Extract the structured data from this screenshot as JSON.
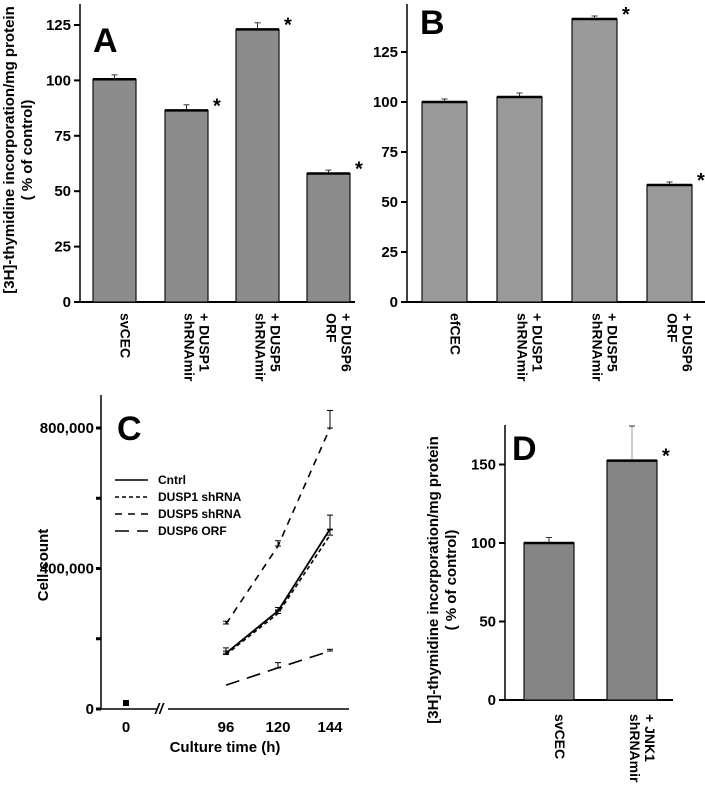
{
  "figure": {
    "shared_ylabel_line1": "[3H]-thymidine incorporation/mg protein",
    "shared_ylabel_line2": "( % of control)"
  },
  "chart_data": [
    {
      "panel": "A",
      "type": "bar",
      "categories": [
        "svCEC",
        "+ DUSP1 shRNAmir",
        "+ DUSP5 shRNAmir",
        "+ DUSP6 ORF"
      ],
      "category_lines": [
        [
          "svCEC"
        ],
        [
          "+ DUSP1",
          "shRNAmir"
        ],
        [
          "+ DUSP5",
          "shRNAmir"
        ],
        [
          "+ DUSP6",
          "ORF"
        ]
      ],
      "values": [
        100.5,
        86.5,
        123,
        58
      ],
      "errors": [
        2,
        2.5,
        3,
        1.5
      ],
      "significant": [
        false,
        true,
        true,
        true
      ],
      "ylabel": "[3H]-thymidine incorporation/mg protein ( % of control)",
      "yticks": [
        0,
        25,
        50,
        75,
        100,
        125
      ],
      "ylim": [
        0,
        133
      ],
      "bar_color": "#8c8c8c"
    },
    {
      "panel": "B",
      "type": "bar",
      "categories": [
        "efCEC",
        "+ DUSP1 shRNAmir",
        "+ DUSP5 shRNAmir",
        "+ DUSP6 ORF"
      ],
      "category_lines": [
        [
          "efCEC"
        ],
        [
          "+ DUSP1",
          "shRNAmir"
        ],
        [
          "+ DUSP5",
          "shRNAmir"
        ],
        [
          "+ DUSP6",
          "ORF"
        ]
      ],
      "values": [
        100,
        102.5,
        141.5,
        58.5
      ],
      "errors": [
        1.5,
        2,
        1.5,
        1.5
      ],
      "significant": [
        false,
        false,
        true,
        true
      ],
      "yticks": [
        0,
        25,
        50,
        75,
        100,
        125
      ],
      "ylim": [
        0,
        149
      ],
      "bar_color": "#9a9a9a"
    },
    {
      "panel": "C",
      "type": "line",
      "title": "",
      "xlabel": "Culture time (h)",
      "ylabel": "Cell count",
      "x": [
        96,
        120,
        144
      ],
      "xticks": [
        "0",
        "96",
        "120",
        "144"
      ],
      "yticks": [
        0,
        400000,
        800000
      ],
      "ytick_labels": [
        "0",
        "400,000",
        "800,000"
      ],
      "minor_yticks": [
        200000,
        600000
      ],
      "ylim": [
        0,
        880000
      ],
      "axis_break": true,
      "initial_point": {
        "x": 0,
        "y": 17000
      },
      "legend_position": "upper-left",
      "series": [
        {
          "name": "Cntrl",
          "values": [
            159000,
            279000,
            512000
          ],
          "errors": [
            15000,
            10000,
            40000
          ],
          "dash": "solid"
        },
        {
          "name": "DUSP1 shRNA",
          "values": [
            155000,
            272000,
            495000
          ],
          "errors": [
            10000,
            10000,
            15000
          ],
          "dash": "dotted"
        },
        {
          "name": "DUSP5 shRNA",
          "values": [
            242000,
            464000,
            800000
          ],
          "errors": [
            8000,
            15000,
            50000
          ],
          "dash": "dashed"
        },
        {
          "name": "DUSP6 ORF",
          "values": [
            68000,
            117000,
            165000
          ],
          "errors": [
            0,
            15000,
            5000
          ],
          "dash": "longdash"
        }
      ]
    },
    {
      "panel": "D",
      "type": "bar",
      "categories": [
        "svCEC",
        "+ JNK1 shRNAmir"
      ],
      "category_lines": [
        [
          "svCEC"
        ],
        [
          "+ JNK1",
          "shRNAmir"
        ]
      ],
      "values": [
        100,
        152.5
      ],
      "errors": [
        3.5,
        22
      ],
      "significant": [
        false,
        true
      ],
      "ylabel": "[3H]-thymidine incorporation/mg protein ( % of control)",
      "yticks": [
        0,
        50,
        100,
        150
      ],
      "ylim": [
        0,
        174
      ],
      "bar_color": "#858585"
    }
  ],
  "panels": {
    "A": {
      "letter": "A"
    },
    "B": {
      "letter": "B"
    },
    "C": {
      "letter": "C"
    },
    "D": {
      "letter": "D"
    }
  },
  "significance_marker": "*"
}
